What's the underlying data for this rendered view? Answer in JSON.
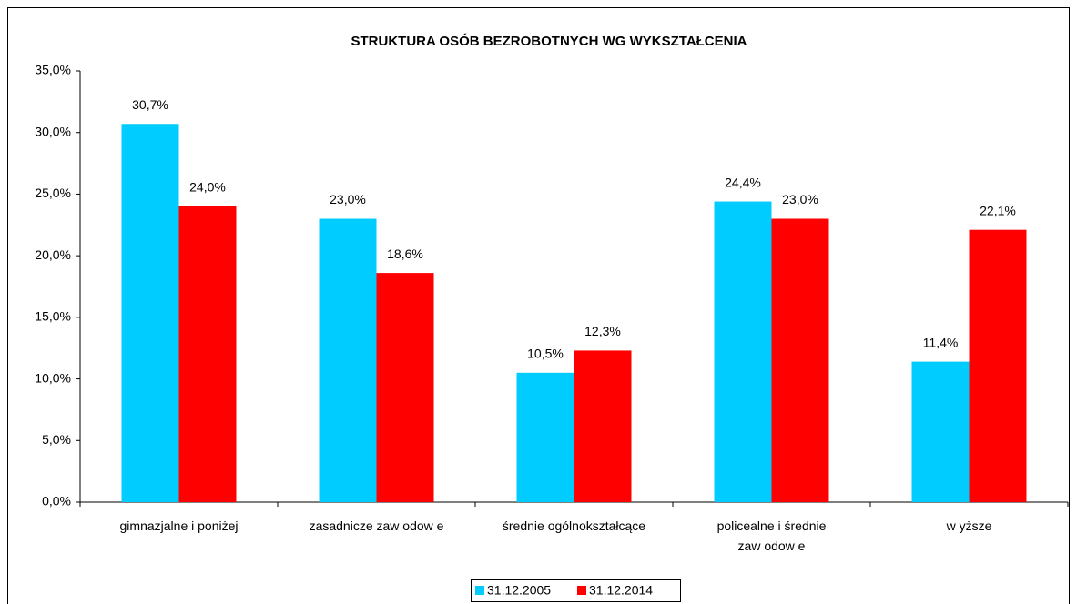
{
  "chart_data": {
    "type": "bar",
    "title": "STRUKTURA OSÓB BEZROBOTNYCH WG WYKSZTAŁCENIA",
    "categories": [
      "gimnazjalne i poniżej",
      "zasadnicze zaw odow e",
      "średnie ogólnokształcące",
      "policealne i średnie\nzaw odow e",
      "w yższe"
    ],
    "series": [
      {
        "name": "31.12.2005",
        "color": "#00ccff",
        "values": [
          30.7,
          23.0,
          10.5,
          24.4,
          11.4
        ],
        "value_labels": [
          "30,7%",
          "23,0%",
          "10,5%",
          "24,4%",
          "11,4%"
        ]
      },
      {
        "name": "31.12.2014",
        "color": "#ff0000",
        "values": [
          24.0,
          18.6,
          12.3,
          23.0,
          22.1
        ],
        "value_labels": [
          "24,0%",
          "18,6%",
          "12,3%",
          "23,0%",
          "22,1%"
        ]
      }
    ],
    "ylim": [
      0,
      35
    ],
    "yticks": [
      {
        "value": 0,
        "label": "0,0%"
      },
      {
        "value": 5,
        "label": "5,0%"
      },
      {
        "value": 10,
        "label": "10,0%"
      },
      {
        "value": 15,
        "label": "15,0%"
      },
      {
        "value": 20,
        "label": "20,0%"
      },
      {
        "value": 25,
        "label": "25,0%"
      },
      {
        "value": 30,
        "label": "30,0%"
      },
      {
        "value": 35,
        "label": "35,0%"
      }
    ],
    "legend": "bottom"
  }
}
